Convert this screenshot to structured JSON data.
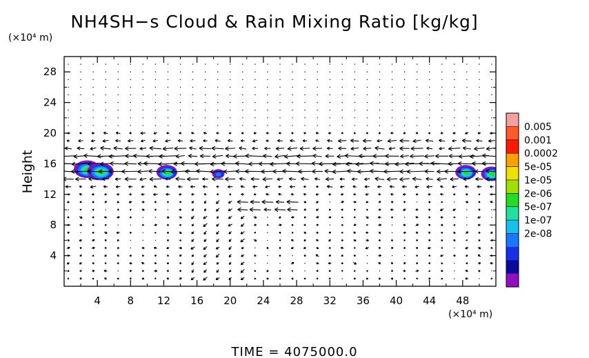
{
  "chart_data": {
    "type": "contour",
    "title": "NH4SH−s Cloud & Rain Mixing Ratio [kg/kg]",
    "xlabel": "",
    "x_unit": "(×10⁴ m)",
    "ylabel": "Height",
    "y_unit": "(×10⁴ m)",
    "xlim": [
      0,
      52
    ],
    "ylim": [
      0,
      30
    ],
    "x_ticks": [
      4,
      8,
      12,
      16,
      20,
      24,
      28,
      32,
      36,
      40,
      44,
      48
    ],
    "y_ticks": [
      4,
      8,
      12,
      16,
      20,
      24,
      28
    ],
    "colorbar": {
      "levels": [
        "0.005",
        "0.001",
        "0.0002",
        "5e-05",
        "1e-05",
        "2e-06",
        "5e-07",
        "1e-07",
        "2e-08"
      ],
      "colors": [
        "#f4a0a0",
        "#ff5a2a",
        "#ff1a00",
        "#ffa000",
        "#f0e000",
        "#a0e000",
        "#22dd22",
        "#22e0a0",
        "#18c0f0",
        "#1878ff",
        "#1830e8",
        "#0a0a9a",
        "#9010c0"
      ]
    },
    "cloud_patches": [
      {
        "x": 2.8,
        "y": 15.2,
        "peak": "5e-06"
      },
      {
        "x": 4.4,
        "y": 14.9,
        "peak": "5e-06"
      },
      {
        "x": 12.4,
        "y": 14.8,
        "peak": "2e-06"
      },
      {
        "x": 18.6,
        "y": 14.6,
        "peak": "2e-07"
      },
      {
        "x": 48.4,
        "y": 14.8,
        "peak": "2e-06"
      },
      {
        "x": 51.5,
        "y": 14.6,
        "peak": "2e-06"
      }
    ],
    "wind_vectors": "westward jet between heights 12 and 20, strongest near 16; weak mixed flow elsewhere",
    "grid": false
  },
  "footer": {
    "time_label": "TIME  =  4075000.0"
  }
}
